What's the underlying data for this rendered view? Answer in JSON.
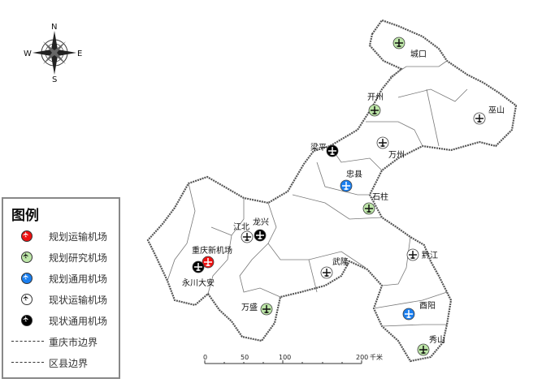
{
  "compass": {
    "n": "N",
    "s": "S",
    "e": "E",
    "w": "W"
  },
  "legend": {
    "title": "图例",
    "items": [
      {
        "label": "规划运输机场",
        "type": "planned-transport",
        "color": "#ee1111"
      },
      {
        "label": "规划研究机场",
        "type": "planned-research",
        "color": "#bde6a8"
      },
      {
        "label": "规划通用机场",
        "type": "planned-general",
        "color": "#1a7ff0"
      },
      {
        "label": "现状运输机场",
        "type": "existing-transport",
        "color": "#ffffff"
      },
      {
        "label": "现状通用机场",
        "type": "existing-general",
        "color": "#000000"
      },
      {
        "label": "重庆市边界",
        "type": "city-boundary"
      },
      {
        "label": "区县边界",
        "type": "county-boundary"
      }
    ]
  },
  "airports": [
    {
      "name": "城口",
      "type": "planned-research"
    },
    {
      "name": "开州",
      "type": "planned-research"
    },
    {
      "name": "巫山",
      "type": "existing-transport"
    },
    {
      "name": "万州",
      "type": "existing-transport"
    },
    {
      "name": "梁平",
      "type": "existing-general"
    },
    {
      "name": "忠县",
      "type": "planned-general"
    },
    {
      "name": "石柱",
      "type": "planned-research"
    },
    {
      "name": "龙兴",
      "type": "existing-general"
    },
    {
      "name": "江北",
      "type": "existing-transport"
    },
    {
      "name": "重庆新机场",
      "type": "planned-transport"
    },
    {
      "name": "永川大安",
      "type": "existing-general"
    },
    {
      "name": "武隆",
      "type": "existing-transport"
    },
    {
      "name": "黔江",
      "type": "existing-transport"
    },
    {
      "name": "酉阳",
      "type": "planned-general"
    },
    {
      "name": "万盛",
      "type": "planned-research"
    },
    {
      "name": "秀山",
      "type": "planned-research"
    }
  ],
  "scale_bar": {
    "ticks": [
      "0",
      "50",
      "100",
      "200"
    ],
    "unit": "千米"
  }
}
